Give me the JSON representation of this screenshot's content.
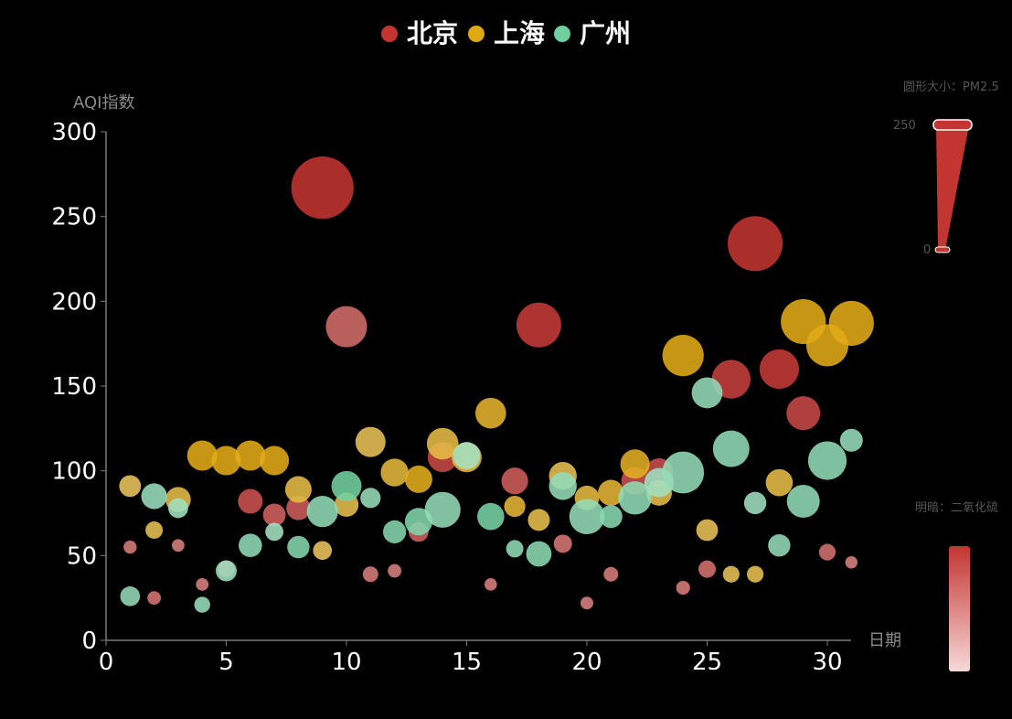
{
  "colors": {
    "background": "#000000",
    "axis": "#7a7a7a",
    "tick_text": "#ffffff",
    "axis_name": "#8a8a8a",
    "beijing": "#c23531",
    "shanghai": "#e0a911",
    "guangzhou": "#6fd0a0",
    "visualmap_text": "#555555"
  },
  "chart_data": {
    "type": "scatter",
    "xlabel": "日期",
    "ylabel": "AQI指数",
    "xlim": [
      0,
      31
    ],
    "ylim": [
      0,
      300
    ],
    "xticks": [
      0,
      5,
      10,
      15,
      20,
      25,
      30
    ],
    "yticks": [
      0,
      50,
      100,
      150,
      200,
      250,
      300
    ],
    "legend": [
      "北京",
      "上海",
      "广州"
    ],
    "legend_position": "top-center",
    "grid": false,
    "size_encoding": {
      "label": "圆形大小：PM2.5",
      "max_label": "250",
      "min_label": "0",
      "range": [
        0,
        250
      ]
    },
    "lightness_encoding": {
      "label": "明暗：二氧化硫"
    },
    "series": [
      {
        "name": "北京",
        "color": "#c23531",
        "points": [
          {
            "x": 1,
            "y": 55,
            "pm25": 9,
            "so2": 30
          },
          {
            "x": 2,
            "y": 25,
            "pm25": 11,
            "so2": 35
          },
          {
            "x": 3,
            "y": 56,
            "pm25": 7,
            "so2": 25
          },
          {
            "x": 4,
            "y": 33,
            "pm25": 7,
            "so2": 25
          },
          {
            "x": 5,
            "y": 42,
            "pm25": 24,
            "so2": 30
          },
          {
            "x": 6,
            "y": 82,
            "pm25": 58,
            "so2": 70
          },
          {
            "x": 7,
            "y": 74,
            "pm25": 49,
            "so2": 55
          },
          {
            "x": 8,
            "y": 78,
            "pm25": 55,
            "so2": 60
          },
          {
            "x": 9,
            "y": 267,
            "pm25": 216,
            "so2": 100
          },
          {
            "x": 10,
            "y": 185,
            "pm25": 127,
            "so2": 45
          },
          {
            "x": 11,
            "y": 39,
            "pm25": 19,
            "so2": 30
          },
          {
            "x": 12,
            "y": 41,
            "pm25": 11,
            "so2": 25
          },
          {
            "x": 13,
            "y": 64,
            "pm25": 38,
            "so2": 55
          },
          {
            "x": 14,
            "y": 108,
            "pm25": 79,
            "so2": 80
          },
          {
            "x": 15,
            "y": 108,
            "pm25": 63,
            "so2": 55
          },
          {
            "x": 16,
            "y": 33,
            "pm25": 6,
            "so2": 25
          },
          {
            "x": 17,
            "y": 94,
            "pm25": 66,
            "so2": 60
          },
          {
            "x": 18,
            "y": 186,
            "pm25": 142,
            "so2": 95
          },
          {
            "x": 19,
            "y": 57,
            "pm25": 31,
            "so2": 35
          },
          {
            "x": 20,
            "y": 22,
            "pm25": 8,
            "so2": 25
          },
          {
            "x": 21,
            "y": 39,
            "pm25": 15,
            "so2": 30
          },
          {
            "x": 22,
            "y": 94,
            "pm25": 69,
            "so2": 70
          },
          {
            "x": 23,
            "y": 99,
            "pm25": 73,
            "so2": 75
          },
          {
            "x": 24,
            "y": 31,
            "pm25": 12,
            "so2": 30
          },
          {
            "x": 25,
            "y": 42,
            "pm25": 27,
            "so2": 40
          },
          {
            "x": 26,
            "y": 154,
            "pm25": 117,
            "so2": 90
          },
          {
            "x": 27,
            "y": 234,
            "pm25": 185,
            "so2": 100
          },
          {
            "x": 28,
            "y": 160,
            "pm25": 120,
            "so2": 95
          },
          {
            "x": 29,
            "y": 134,
            "pm25": 96,
            "so2": 80
          },
          {
            "x": 30,
            "y": 52,
            "pm25": 24,
            "so2": 40
          },
          {
            "x": 31,
            "y": 46,
            "pm25": 5,
            "so2": 25
          }
        ]
      },
      {
        "name": "上海",
        "color": "#e0a911",
        "points": [
          {
            "x": 1,
            "y": 91,
            "pm25": 45,
            "so2": 35
          },
          {
            "x": 2,
            "y": 65,
            "pm25": 27,
            "so2": 45
          },
          {
            "x": 3,
            "y": 83,
            "pm25": 60,
            "so2": 55
          },
          {
            "x": 4,
            "y": 109,
            "pm25": 81,
            "so2": 95
          },
          {
            "x": 5,
            "y": 106,
            "pm25": 77,
            "so2": 95
          },
          {
            "x": 6,
            "y": 109,
            "pm25": 81,
            "so2": 95
          },
          {
            "x": 7,
            "y": 106,
            "pm25": 77,
            "so2": 95
          },
          {
            "x": 8,
            "y": 89,
            "pm25": 65,
            "so2": 55
          },
          {
            "x": 9,
            "y": 53,
            "pm25": 33,
            "so2": 35
          },
          {
            "x": 10,
            "y": 80,
            "pm25": 55,
            "so2": 50
          },
          {
            "x": 11,
            "y": 117,
            "pm25": 81,
            "so2": 40
          },
          {
            "x": 12,
            "y": 99,
            "pm25": 71,
            "so2": 65
          },
          {
            "x": 13,
            "y": 95,
            "pm25": 69,
            "so2": 90
          },
          {
            "x": 14,
            "y": 116,
            "pm25": 87,
            "so2": 55
          },
          {
            "x": 15,
            "y": 108,
            "pm25": 80,
            "so2": 60
          },
          {
            "x": 16,
            "y": 134,
            "pm25": 83,
            "so2": 75
          },
          {
            "x": 17,
            "y": 79,
            "pm25": 43,
            "so2": 70
          },
          {
            "x": 18,
            "y": 71,
            "pm25": 46,
            "so2": 50
          },
          {
            "x": 19,
            "y": 97,
            "pm25": 71,
            "so2": 45
          },
          {
            "x": 20,
            "y": 84,
            "pm25": 57,
            "so2": 60
          },
          {
            "x": 21,
            "y": 87,
            "pm25": 63,
            "so2": 70
          },
          {
            "x": 22,
            "y": 104,
            "pm25": 77,
            "so2": 85
          },
          {
            "x": 23,
            "y": 87,
            "pm25": 62,
            "so2": 55
          },
          {
            "x": 24,
            "y": 168,
            "pm25": 128,
            "so2": 95
          },
          {
            "x": 25,
            "y": 65,
            "pm25": 45,
            "so2": 40
          },
          {
            "x": 26,
            "y": 39,
            "pm25": 24,
            "so2": 40
          },
          {
            "x": 27,
            "y": 39,
            "pm25": 24,
            "so2": 45
          },
          {
            "x": 28,
            "y": 93,
            "pm25": 68,
            "so2": 55
          },
          {
            "x": 29,
            "y": 188,
            "pm25": 143,
            "so2": 95
          },
          {
            "x": 30,
            "y": 174,
            "pm25": 131,
            "so2": 95
          },
          {
            "x": 31,
            "y": 187,
            "pm25": 143,
            "so2": 95
          }
        ]
      },
      {
        "name": "广州",
        "color": "#6fd0a0",
        "points": [
          {
            "x": 1,
            "y": 26,
            "pm25": 37,
            "so2": 50
          },
          {
            "x": 2,
            "y": 85,
            "pm25": 62,
            "so2": 40
          },
          {
            "x": 3,
            "y": 78,
            "pm25": 38,
            "so2": 30
          },
          {
            "x": 4,
            "y": 21,
            "pm25": 21,
            "so2": 40
          },
          {
            "x": 5,
            "y": 41,
            "pm25": 42,
            "so2": 35
          },
          {
            "x": 6,
            "y": 56,
            "pm25": 52,
            "so2": 55
          },
          {
            "x": 7,
            "y": 64,
            "pm25": 30,
            "so2": 25
          },
          {
            "x": 8,
            "y": 55,
            "pm25": 48,
            "so2": 70
          },
          {
            "x": 9,
            "y": 76,
            "pm25": 85,
            "so2": 55
          },
          {
            "x": 10,
            "y": 91,
            "pm25": 81,
            "so2": 95
          },
          {
            "x": 11,
            "y": 84,
            "pm25": 39,
            "so2": 45
          },
          {
            "x": 12,
            "y": 64,
            "pm25": 51,
            "so2": 70
          },
          {
            "x": 13,
            "y": 70,
            "pm25": 69,
            "so2": 75
          },
          {
            "x": 14,
            "y": 77,
            "pm25": 105,
            "so2": 50
          },
          {
            "x": 15,
            "y": 109,
            "pm25": 68,
            "so2": 30
          },
          {
            "x": 16,
            "y": 73,
            "pm25": 68,
            "so2": 90
          },
          {
            "x": 17,
            "y": 54,
            "pm25": 27,
            "so2": 55
          },
          {
            "x": 18,
            "y": 51,
            "pm25": 61,
            "so2": 60
          },
          {
            "x": 19,
            "y": 91,
            "pm25": 71,
            "so2": 50
          },
          {
            "x": 20,
            "y": 73,
            "pm25": 102,
            "so2": 50
          },
          {
            "x": 21,
            "y": 73,
            "pm25": 50,
            "so2": 65
          },
          {
            "x": 22,
            "y": 84,
            "pm25": 94,
            "so2": 55
          },
          {
            "x": 23,
            "y": 93,
            "pm25": 77,
            "so2": 30
          },
          {
            "x": 24,
            "y": 99,
            "pm25": 130,
            "so2": 50
          },
          {
            "x": 25,
            "y": 146,
            "pm25": 84,
            "so2": 50
          },
          {
            "x": 26,
            "y": 113,
            "pm25": 108,
            "so2": 55
          },
          {
            "x": 27,
            "y": 81,
            "pm25": 48,
            "so2": 35
          },
          {
            "x": 28,
            "y": 56,
            "pm25": 48,
            "so2": 50
          },
          {
            "x": 29,
            "y": 82,
            "pm25": 92,
            "so2": 55
          },
          {
            "x": 30,
            "y": 106,
            "pm25": 116,
            "so2": 55
          },
          {
            "x": 31,
            "y": 118,
            "pm25": 50,
            "so2": 45
          }
        ]
      }
    ]
  }
}
